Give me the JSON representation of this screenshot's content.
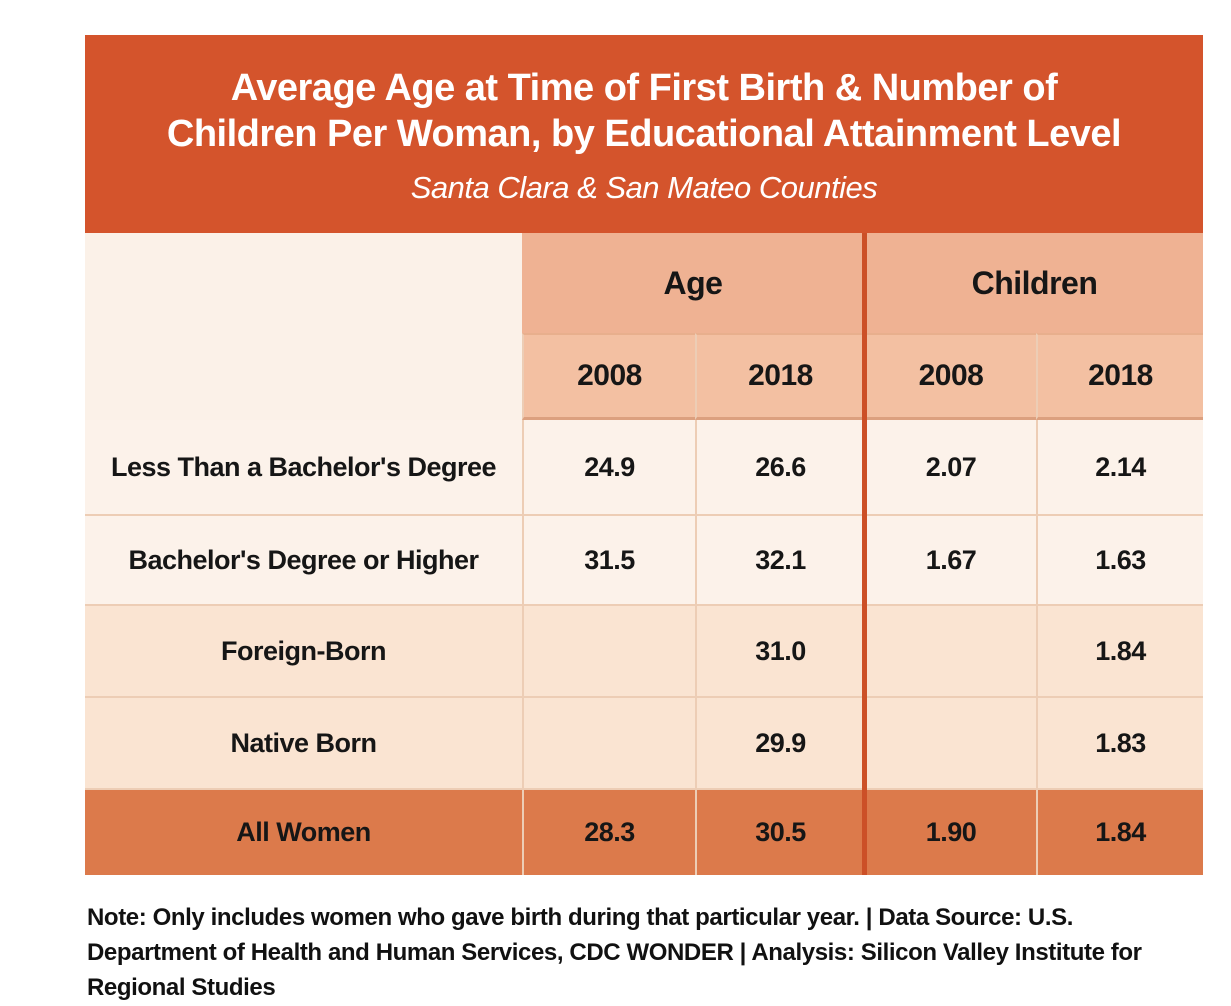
{
  "header": {
    "title_line1": "Average Age at Time of First Birth & Number of",
    "title_line2": "Children Per Woman, by Educational Attainment Level",
    "subtitle": "Santa Clara & San Mateo Counties"
  },
  "table": {
    "group_headers": [
      {
        "label": "Age"
      },
      {
        "label": "Children"
      }
    ],
    "year_headers": [
      "2008",
      "2018",
      "2008",
      "2018"
    ],
    "rows": [
      {
        "label": "Less Than a Bachelor's Degree",
        "values": [
          "24.9",
          "26.6",
          "2.07",
          "2.14"
        ],
        "style": "cream"
      },
      {
        "label": "Bachelor's Degree or Higher",
        "values": [
          "31.5",
          "32.1",
          "1.67",
          "1.63"
        ],
        "style": "cream"
      },
      {
        "label": "Foreign-Born",
        "values": [
          "",
          "31.0",
          "",
          "1.84"
        ],
        "style": "peach"
      },
      {
        "label": "Native Born",
        "values": [
          "",
          "29.9",
          "",
          "1.83"
        ],
        "style": "peach"
      },
      {
        "label": "All Women",
        "values": [
          "28.3",
          "30.5",
          "1.90",
          "1.84"
        ],
        "style": "orange"
      }
    ]
  },
  "note": {
    "text": "Note: Only includes women who gave birth during that particular year.  |  Data Source: U.S. Department of Health and Human Services, CDC WONDER  |  Analysis: Silicon Valley Institute for Regional Studies"
  },
  "colors": {
    "title_bg": "#D4542C",
    "group_band": "#EFB293",
    "year_band": "#F3C0A2",
    "corner_cell": "#FBF1E8",
    "cream_row": "#FCF2EA",
    "peach_row": "#FAE4D2",
    "total_row": "#DC7A4B",
    "thick_divider": "#CC5027",
    "thin_border": "#EDCDB5",
    "title_text": "#FFFFFF",
    "body_text": "#161616"
  },
  "chart_data": {
    "type": "table",
    "title": "Average Age at Time of First Birth & Number of Children Per Woman, by Educational Attainment Level",
    "subtitle": "Santa Clara & San Mateo Counties",
    "column_groups": [
      "Age",
      "Children"
    ],
    "columns": [
      "Age 2008",
      "Age 2018",
      "Children 2008",
      "Children 2018"
    ],
    "rows": [
      {
        "label": "Less Than a Bachelor's Degree",
        "age_2008": 24.9,
        "age_2018": 26.6,
        "children_2008": 2.07,
        "children_2018": 2.14
      },
      {
        "label": "Bachelor's Degree or Higher",
        "age_2008": 31.5,
        "age_2018": 32.1,
        "children_2008": 1.67,
        "children_2018": 1.63
      },
      {
        "label": "Foreign-Born",
        "age_2008": null,
        "age_2018": 31.0,
        "children_2008": null,
        "children_2018": 1.84
      },
      {
        "label": "Native Born",
        "age_2008": null,
        "age_2018": 29.9,
        "children_2008": null,
        "children_2018": 1.83
      },
      {
        "label": "All Women",
        "age_2008": 28.3,
        "age_2018": 30.5,
        "children_2008": 1.9,
        "children_2018": 1.84
      }
    ],
    "note": "Note: Only includes women who gave birth during that particular year. | Data Source: U.S. Department of Health and Human Services, CDC WONDER | Analysis: Silicon Valley Institute for Regional Studies"
  }
}
